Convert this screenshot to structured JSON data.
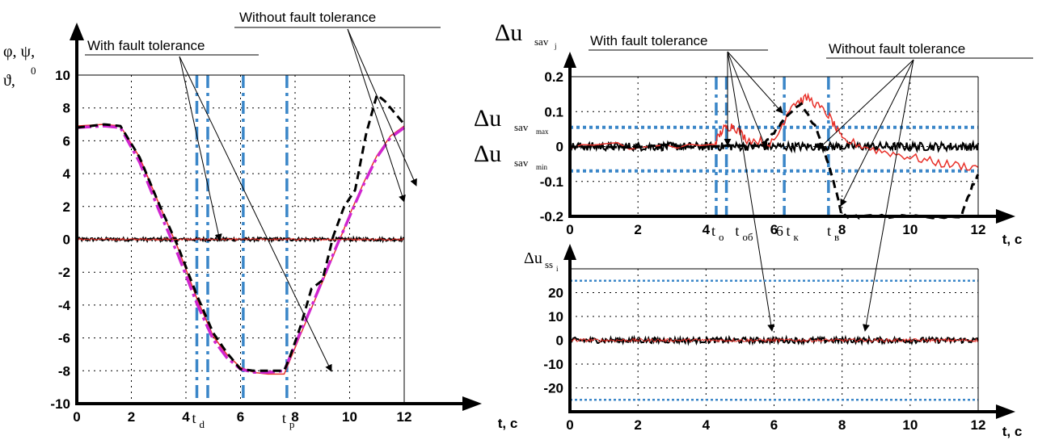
{
  "chart_data": [
    {
      "type": "line",
      "ylabel": [
        "φ, ψ,",
        "ϑ,",
        "0"
      ],
      "xlabel": "t, c",
      "xlim": [
        0,
        12
      ],
      "ylim": [
        -10,
        10
      ],
      "xticks": [
        "0",
        "2",
        "4",
        "6",
        "8",
        "10",
        "12"
      ],
      "yticks": [
        "-10",
        "-8",
        "-6",
        "-4",
        "-2",
        "0",
        "2",
        "4",
        "6",
        "8",
        "10"
      ],
      "vlines": [
        4.4,
        4.8,
        6.1,
        7.7
      ],
      "time_marks": [
        {
          "t": 4.4,
          "label": "t",
          "sub": "d"
        },
        {
          "t": 7.7,
          "label": "t",
          "sub": "p"
        }
      ],
      "annotations": [
        "With fault tolerance",
        "Without fault tolerance"
      ],
      "series": [
        {
          "color": "#e8312a",
          "style": "solid",
          "x": [
            0,
            1,
            1.6,
            2.3,
            3,
            3.7,
            4.4,
            5,
            5.5,
            6,
            6.5,
            7,
            7.6,
            8,
            8.5,
            9,
            9.5,
            10,
            10.5,
            11,
            11.5,
            12
          ],
          "y": [
            6.9,
            7,
            6.9,
            5,
            2.2,
            -0.5,
            -3.6,
            -5.9,
            -7,
            -7.8,
            -8.1,
            -8.2,
            -8.2,
            -6.6,
            -4.6,
            -2.6,
            -0.6,
            1.5,
            3.4,
            5.1,
            6.3,
            6.9
          ]
        },
        {
          "color": "#d026d0",
          "style": "dashdot",
          "x": [
            0,
            1,
            1.6,
            2.3,
            3,
            3.7,
            4.4,
            5,
            5.5,
            6,
            6.5,
            7,
            7.6,
            8,
            8.5,
            9,
            9.5,
            10,
            10.5,
            11,
            11.5,
            12
          ],
          "y": [
            6.8,
            6.9,
            6.8,
            4.7,
            1.8,
            -0.9,
            -3.9,
            -6.1,
            -7.2,
            -7.9,
            -8.1,
            -8.1,
            -8,
            -6.4,
            -4.5,
            -2.5,
            -0.5,
            1.4,
            3.3,
            5,
            6.2,
            6.8
          ]
        },
        {
          "color": "#000000",
          "style": "dashed",
          "x": [
            0,
            1,
            1.6,
            2.3,
            3,
            3.7,
            4.4,
            5,
            5.5,
            6,
            6.5,
            7,
            7.6,
            7.8,
            8.2,
            8.6,
            9,
            9.4,
            9.8,
            10.2,
            10.6,
            11,
            11.3,
            11.6,
            12
          ],
          "y": [
            6.8,
            7,
            6.9,
            5,
            2.2,
            -0.4,
            -3.4,
            -5.7,
            -6.9,
            -7.9,
            -8,
            -8,
            -8,
            -7.2,
            -5.3,
            -3,
            -2.5,
            0.2,
            2,
            3,
            6.4,
            8.8,
            8.4,
            7.8,
            7
          ]
        },
        {
          "color": "#000000",
          "style": "noise",
          "x": [
            0,
            12
          ],
          "y": [
            0,
            0
          ],
          "noise": 0.1
        },
        {
          "color": "#e8312a",
          "style": "noise",
          "x": [
            0,
            12
          ],
          "y": [
            0,
            0
          ],
          "noise": 0.06
        }
      ]
    },
    {
      "type": "line",
      "ylabel": "Δu",
      "ylabel_sub": "sav",
      "ylabel_subsub": "j",
      "xlabel": "t, c",
      "xlim": [
        0,
        12
      ],
      "ylim": [
        -0.2,
        0.2
      ],
      "xticks": [
        "0",
        "2",
        "4",
        "6",
        "8",
        "10",
        "12"
      ],
      "yticks": [
        "-0.2",
        "-0.1",
        "0",
        "0.1",
        "0.2"
      ],
      "thresholds": [
        {
          "value": 0.055,
          "label": "Δu",
          "sub": "sav",
          "subsub": "max"
        },
        {
          "value": -0.07,
          "label": "Δu",
          "sub": "sav",
          "subsub": "min"
        }
      ],
      "vlines": [
        4.3,
        4.6,
        6.3,
        7.6
      ],
      "time_marks": [
        {
          "t": 4.3,
          "label": "t",
          "sub": "o"
        },
        {
          "t": 5.0,
          "label": "t",
          "sub": "oб"
        },
        {
          "t": 6.2,
          "label": "6",
          "sub": ""
        },
        {
          "t": 6.5,
          "label": "t",
          "sub": "к"
        },
        {
          "t": 7.7,
          "label": "t",
          "sub": "в"
        }
      ],
      "annotations": [
        "With fault tolerance",
        "Without fault tolerance"
      ],
      "series": [
        {
          "color": "#000000",
          "style": "noise",
          "x": [
            0,
            12
          ],
          "y": [
            0,
            0
          ],
          "noise": 0.012
        },
        {
          "color": "#e8312a",
          "style": "solid",
          "x": [
            0,
            4.2,
            4.5,
            4.8,
            5.2,
            6,
            6.5,
            7.0,
            7.6,
            8,
            9,
            10,
            11,
            12
          ],
          "y": [
            0,
            0,
            0.05,
            0.06,
            0.02,
            0.01,
            0.12,
            0.14,
            0.09,
            0.02,
            -0.01,
            -0.03,
            -0.05,
            -0.06
          ]
        },
        {
          "color": "#000000",
          "style": "dashed",
          "x": [
            0,
            5.6,
            6.0,
            6.4,
            6.8,
            7.2,
            7.5,
            7.8,
            8.0,
            8.5,
            9.5,
            10.5,
            11.5,
            11.8,
            12
          ],
          "y": [
            0,
            0,
            0.04,
            0.09,
            0.12,
            0.06,
            -0.02,
            -0.12,
            -0.2,
            -0.2,
            -0.2,
            -0.2,
            -0.2,
            -0.12,
            -0.08
          ]
        }
      ]
    },
    {
      "type": "line",
      "ylabel": "Δu",
      "ylabel_sub": "ss",
      "ylabel_subsub": "i",
      "xlabel": "t, c",
      "xlim": [
        0,
        12
      ],
      "ylim": [
        -30,
        30
      ],
      "xticks": [
        "0",
        "2",
        "4",
        "6",
        "8",
        "10",
        "12"
      ],
      "yticks": [
        "-20",
        "-10",
        "0",
        "10",
        "20"
      ],
      "thresholds": [
        {
          "value": 25
        },
        {
          "value": -25
        }
      ],
      "series": [
        {
          "color": "#000000",
          "style": "noise",
          "x": [
            0,
            12
          ],
          "y": [
            0,
            0
          ],
          "noise": 1.2
        },
        {
          "color": "#e8312a",
          "style": "noise",
          "x": [
            0,
            12
          ],
          "y": [
            0,
            0
          ],
          "noise": 0.7
        }
      ]
    }
  ]
}
